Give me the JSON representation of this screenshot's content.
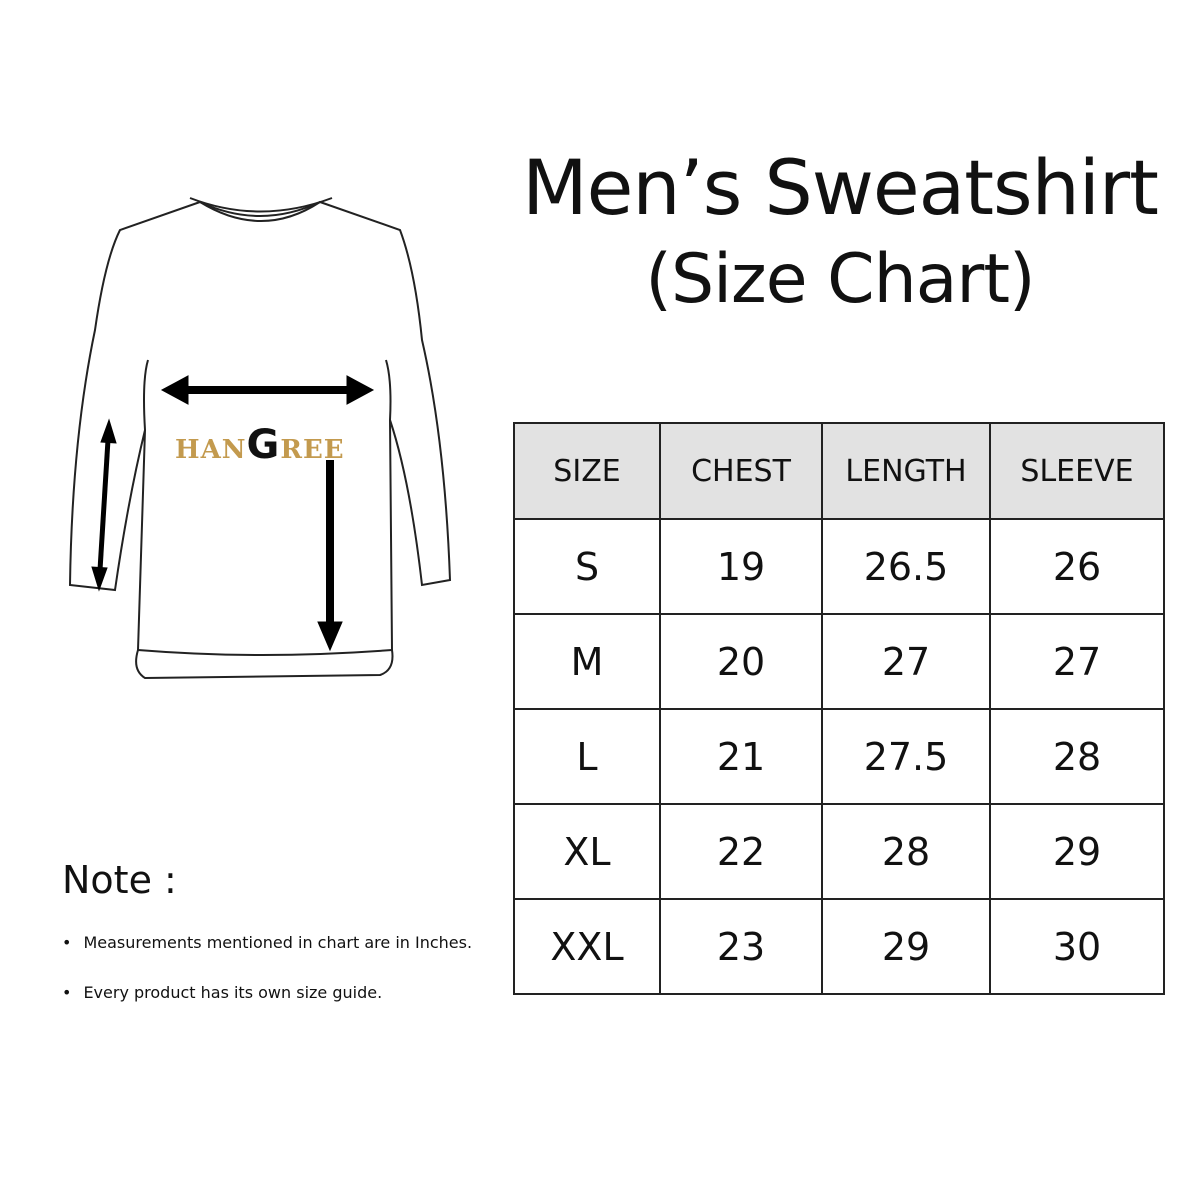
{
  "header": {
    "title": "Men’s Sweatshirt",
    "subtitle": "(Size Chart)"
  },
  "logo": {
    "text_before": "HAN",
    "text_g": "G",
    "text_after": "REE",
    "brand_color": "#c39a4e"
  },
  "size_chart": {
    "columns": [
      "SIZE",
      "CHEST",
      "LENGTH",
      "SLEEVE"
    ],
    "rows": [
      [
        "S",
        "19",
        "26.5",
        "26"
      ],
      [
        "M",
        "20",
        "27",
        "27"
      ],
      [
        "L",
        "21",
        "27.5",
        "28"
      ],
      [
        "XL",
        "22",
        "28",
        "29"
      ],
      [
        "XXL",
        "23",
        "29",
        "30"
      ]
    ],
    "header_bg": "#e2e2e2"
  },
  "notes": {
    "label": "Note :",
    "items": [
      "Measurements mentioned in chart are in Inches.",
      "Every product has its own size guide."
    ]
  }
}
